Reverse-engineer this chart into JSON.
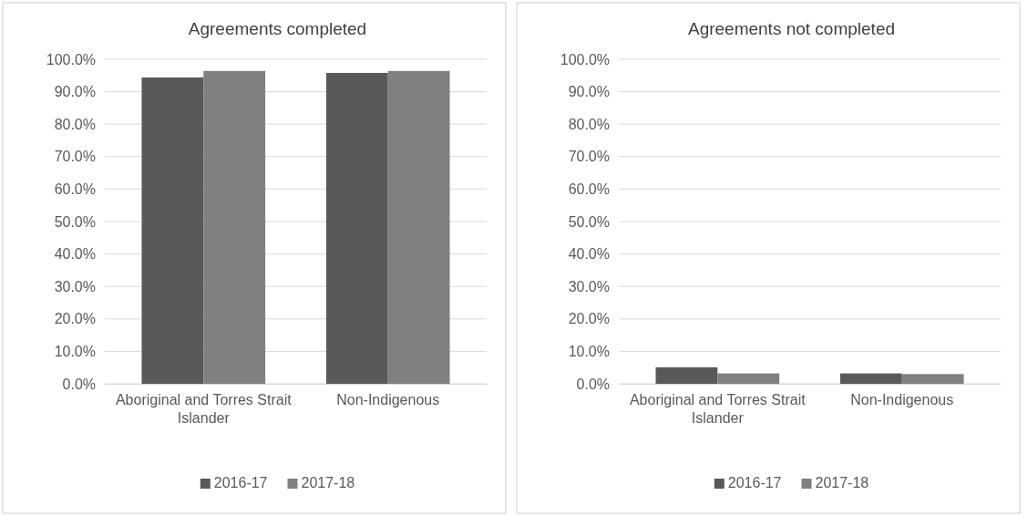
{
  "chart_data": [
    {
      "type": "bar",
      "title": "Agreements completed",
      "categories": [
        "Aboriginal and Torres Strait Islander",
        "Non-Indigenous"
      ],
      "series": [
        {
          "name": "2016-17",
          "color": "#595959",
          "values": [
            94.4,
            95.8
          ]
        },
        {
          "name": "2017-18",
          "color": "#808080",
          "values": [
            96.4,
            96.4
          ]
        }
      ],
      "ylim": [
        0,
        100
      ],
      "yticks": [
        {
          "value": 0,
          "label": "0.0%"
        },
        {
          "value": 10,
          "label": "10.0%"
        },
        {
          "value": 20,
          "label": "20.0%"
        },
        {
          "value": 30,
          "label": "30.0%"
        },
        {
          "value": 40,
          "label": "40.0%"
        },
        {
          "value": 50,
          "label": "50.0%"
        },
        {
          "value": 60,
          "label": "60.0%"
        },
        {
          "value": 70,
          "label": "70.0%"
        },
        {
          "value": 80,
          "label": "80.0%"
        },
        {
          "value": 90,
          "label": "90.0%"
        },
        {
          "value": 100,
          "label": "100.0%"
        }
      ],
      "grid": "y",
      "legend": "bottom"
    },
    {
      "type": "bar",
      "title": "Agreements not completed",
      "categories": [
        "Aboriginal and Torres Strait Islander",
        "Non-Indigenous"
      ],
      "series": [
        {
          "name": "2016-17",
          "color": "#595959",
          "values": [
            5.1,
            3.2
          ]
        },
        {
          "name": "2017-18",
          "color": "#808080",
          "values": [
            3.2,
            3.0
          ]
        }
      ],
      "ylim": [
        0,
        100
      ],
      "yticks": [
        {
          "value": 0,
          "label": "0.0%"
        },
        {
          "value": 10,
          "label": "10.0%"
        },
        {
          "value": 20,
          "label": "20.0%"
        },
        {
          "value": 30,
          "label": "30.0%"
        },
        {
          "value": 40,
          "label": "40.0%"
        },
        {
          "value": 50,
          "label": "50.0%"
        },
        {
          "value": 60,
          "label": "60.0%"
        },
        {
          "value": 70,
          "label": "70.0%"
        },
        {
          "value": 80,
          "label": "80.0%"
        },
        {
          "value": 90,
          "label": "90.0%"
        },
        {
          "value": 100,
          "label": "100.0%"
        }
      ],
      "grid": "y",
      "legend": "bottom"
    }
  ]
}
